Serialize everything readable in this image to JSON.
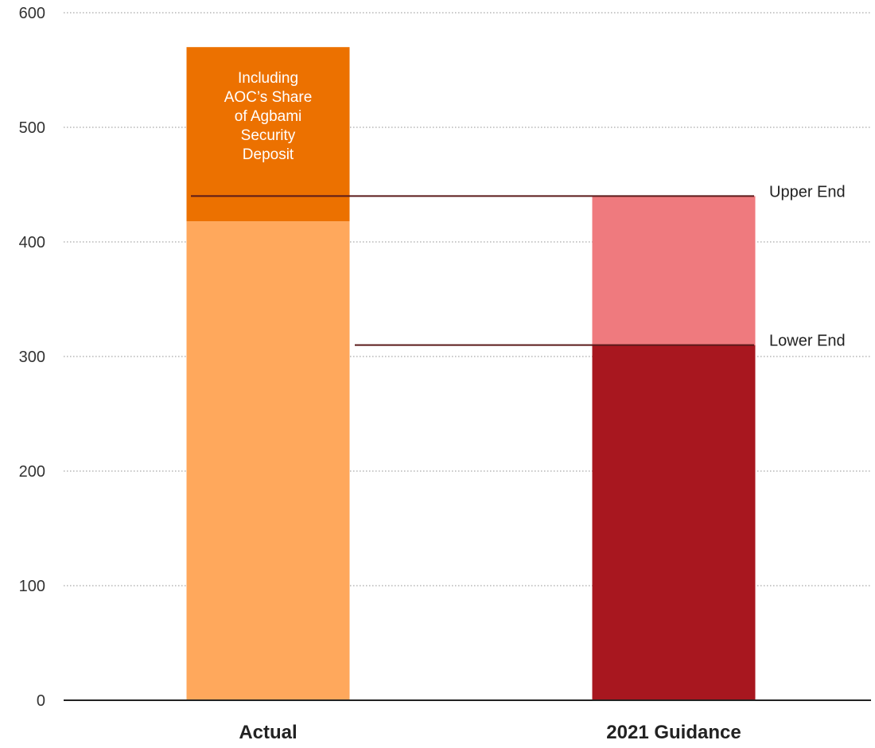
{
  "chart_data": {
    "type": "bar",
    "stacked": true,
    "title": "",
    "xlabel": "",
    "ylabel": "",
    "ylim": [
      0,
      600
    ],
    "yticks": [
      0,
      100,
      200,
      300,
      400,
      500,
      600
    ],
    "grid": true,
    "categories": [
      "Actual",
      "2021 Guidance"
    ],
    "bars": [
      {
        "category": "Actual",
        "segments": [
          {
            "from": 0,
            "to": 418,
            "color": "#FFA85C",
            "label": ""
          },
          {
            "from": 418,
            "to": 570,
            "color": "#EC7100",
            "label": "Including AOC’s Share of Agbami Security Deposit"
          }
        ]
      },
      {
        "category": "2021 Guidance",
        "segments": [
          {
            "from": 0,
            "to": 310,
            "color": "#A8171F",
            "label": ""
          },
          {
            "from": 310,
            "to": 440,
            "color": "#EF7A7E",
            "label": ""
          }
        ]
      }
    ],
    "annotation_label_lines": [
      "Including",
      "AOC’s Share",
      "of Agbami",
      "Security",
      "Deposit"
    ],
    "reference_lines": [
      {
        "label": "Upper End",
        "value": 440
      },
      {
        "label": "Lower End",
        "value": 310
      }
    ],
    "colors": {
      "axis": "#222222",
      "grid": "#b5b5b5",
      "reference_line": "#5a1a1a",
      "tick_text": "#333333",
      "category_text": "#222222",
      "annotation_text": "#ffffff"
    }
  }
}
